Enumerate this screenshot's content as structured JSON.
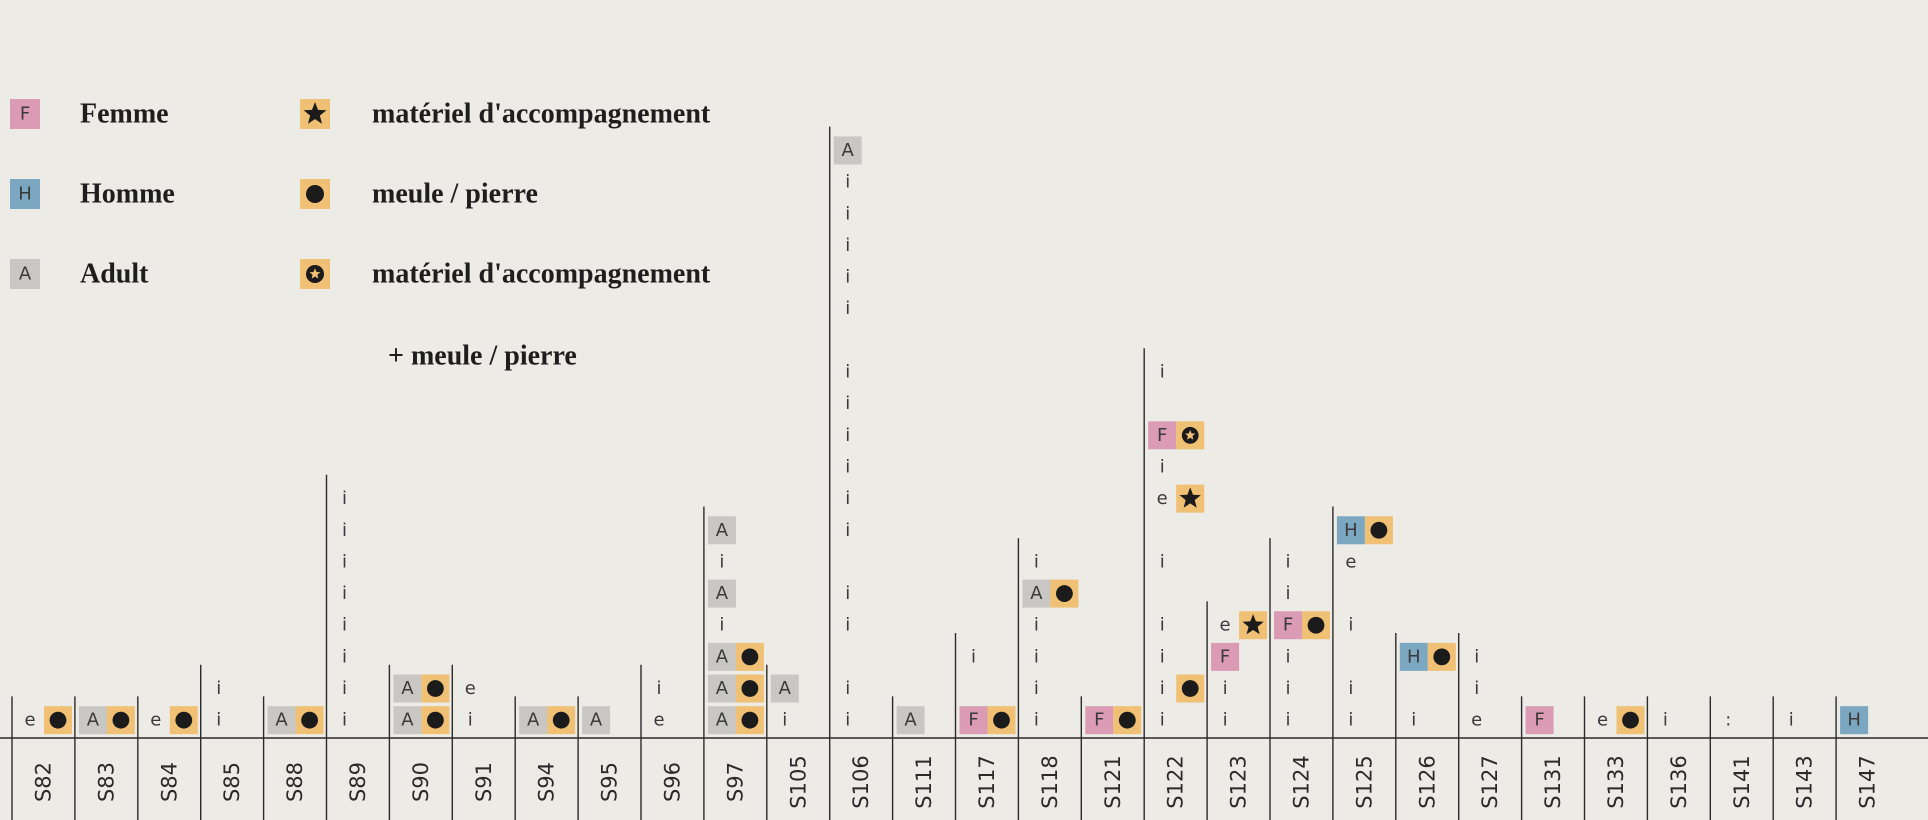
{
  "colors": {
    "F": "#dc9bb4",
    "H": "#7ba7c1",
    "A": "#c9c7c4",
    "mat": "#f0c074",
    "text": "#3a3a3a"
  },
  "legend": {
    "col1": [
      {
        "symbol": "F",
        "label": "Femme"
      },
      {
        "symbol": "H",
        "label": "Homme"
      },
      {
        "symbol": "A",
        "label": "Adult"
      }
    ],
    "col2": [
      {
        "symbol": "star",
        "label": "matériel d'accompagnement"
      },
      {
        "symbol": "dot",
        "label": "meule / pierre"
      },
      {
        "symbol": "ring",
        "label": "matériel d'accompagnement"
      }
    ],
    "col2_extra": "+ meule / pierre"
  },
  "chart_data": {
    "type": "table",
    "categories": [
      "S82",
      "S83",
      "S84",
      "S85",
      "S88",
      "S89",
      "S90",
      "S91",
      "S94",
      "S95",
      "S96",
      "S97",
      "S105",
      "S106",
      "S111",
      "S117",
      "S118",
      "S121",
      "S122",
      "S123",
      "S124",
      "S125",
      "S126",
      "S127",
      "S131",
      "S133",
      "S136",
      "S141",
      "S143",
      "S147"
    ],
    "columns": {
      "S82": [
        [
          "e",
          "dot"
        ]
      ],
      "S83": [
        [
          "A",
          "dot"
        ]
      ],
      "S84": [
        [
          "e",
          "dot"
        ]
      ],
      "S85": [
        [
          "i"
        ],
        [
          "i"
        ]
      ],
      "S88": [
        [
          "A",
          "dot"
        ]
      ],
      "S89": [
        [
          "i"
        ],
        [
          "i"
        ],
        [
          "i"
        ],
        [
          "i"
        ],
        [
          "i"
        ],
        [
          "i"
        ],
        [
          "i"
        ],
        [
          "i"
        ]
      ],
      "S90": [
        [
          "A",
          "dot"
        ],
        [
          "A",
          "dot"
        ]
      ],
      "S91": [
        [
          "i"
        ],
        [
          "e"
        ]
      ],
      "S94": [
        [
          "A",
          "dot"
        ]
      ],
      "S95": [
        [
          "A"
        ]
      ],
      "S96": [
        [
          "e"
        ],
        [
          "i"
        ]
      ],
      "S97": [
        [
          "A",
          "dot"
        ],
        [
          "A",
          "dot"
        ],
        [
          "A",
          "dot"
        ],
        [
          "i"
        ],
        [
          "A"
        ],
        [
          "i"
        ],
        [
          "A"
        ]
      ],
      "S105": [
        [
          "i"
        ],
        [
          "A"
        ]
      ],
      "S106": [
        [
          "i"
        ],
        [
          "i"
        ],
        [],
        [
          "i"
        ],
        [
          "i"
        ],
        [],
        [
          "i"
        ],
        [
          "i"
        ],
        [
          "i"
        ],
        [
          "i"
        ],
        [
          "i"
        ],
        [
          "i"
        ],
        [],
        [
          "i"
        ],
        [
          "i"
        ],
        [
          "i"
        ],
        [
          "i"
        ],
        [
          "i"
        ],
        [
          "A"
        ]
      ],
      "S111": [
        [
          "A"
        ]
      ],
      "S117": [
        [
          "F",
          "dot"
        ],
        [],
        [
          "i"
        ]
      ],
      "S118": [
        [
          "i"
        ],
        [
          "i"
        ],
        [
          "i"
        ],
        [
          "i"
        ],
        [
          "A",
          "dot"
        ],
        [
          "i"
        ]
      ],
      "S121": [
        [
          "F",
          "dot"
        ]
      ],
      "S122": [
        [
          "i"
        ],
        [
          "i",
          "dot"
        ],
        [
          "i"
        ],
        [
          "i"
        ],
        [],
        [
          "i"
        ],
        [],
        [
          "e",
          "star"
        ],
        [
          "i"
        ],
        [
          "F",
          "ring"
        ],
        [],
        [
          "i"
        ]
      ],
      "S123": [
        [
          "i"
        ],
        [
          "i"
        ],
        [
          "F"
        ],
        [
          "e",
          "star"
        ]
      ],
      "S124": [
        [
          "i"
        ],
        [
          "i"
        ],
        [
          "i"
        ],
        [
          "F",
          "dot"
        ],
        [
          "i"
        ],
        [
          "i"
        ]
      ],
      "S125": [
        [
          "i"
        ],
        [
          "i"
        ],
        [],
        [
          "i"
        ],
        [],
        [
          "e"
        ],
        [
          "H",
          "dot"
        ]
      ],
      "S126": [
        [
          "i"
        ],
        [],
        [
          "H",
          "dot"
        ]
      ],
      "S127": [
        [
          "e"
        ],
        [
          "i"
        ],
        [
          "i"
        ]
      ],
      "S131": [
        [
          "F"
        ]
      ],
      "S133": [
        [
          "e",
          "dot"
        ]
      ],
      "S136": [
        [
          "i"
        ]
      ],
      "S141": [
        [
          ":"
        ]
      ],
      "S143": [
        [
          "i"
        ]
      ],
      "S147": [
        [
          "H"
        ]
      ]
    }
  }
}
